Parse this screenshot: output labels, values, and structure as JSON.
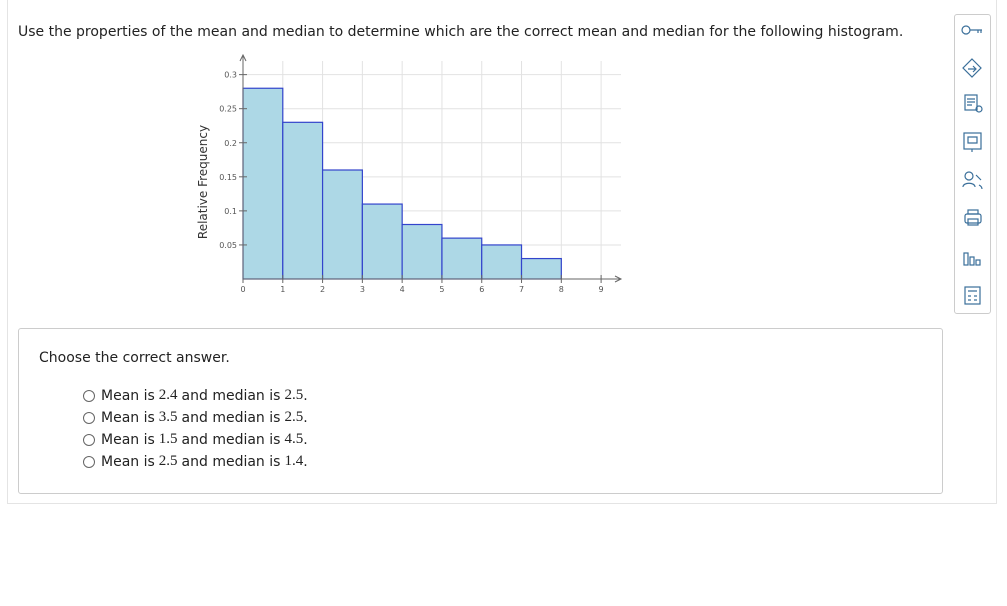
{
  "question": "Use the properties of the mean and median to determine which are the correct mean and median for the following histogram.",
  "chart_data": {
    "type": "histogram",
    "y_label": "Relative Frequency",
    "bins": [
      0,
      1,
      2,
      3,
      4,
      5,
      6,
      7,
      8
    ],
    "values": [
      0.28,
      0.23,
      0.16,
      0.11,
      0.08,
      0.06,
      0.05,
      0.03
    ],
    "color": "#add8e6",
    "edge_color": "#3344cc",
    "xlim": [
      0,
      9.5
    ],
    "xticks": [
      0,
      1,
      2,
      3,
      4,
      5,
      6,
      7,
      8,
      9
    ],
    "ylim": [
      0,
      0.32
    ],
    "yticks": [
      0.05,
      0.1,
      0.15,
      0.2,
      0.25,
      0.3
    ],
    "grid": true
  },
  "answer": {
    "prompt": "Choose the correct answer.",
    "options": [
      [
        "Mean is",
        "2.4",
        "and median is",
        "2.5",
        "."
      ],
      [
        "Mean is",
        "3.5",
        "and median is",
        "2.5",
        "."
      ],
      [
        "Mean is",
        "1.5",
        "and median is",
        "4.5",
        "."
      ],
      [
        "Mean is",
        "2.5",
        "and median is",
        "1.4",
        "."
      ]
    ]
  }
}
